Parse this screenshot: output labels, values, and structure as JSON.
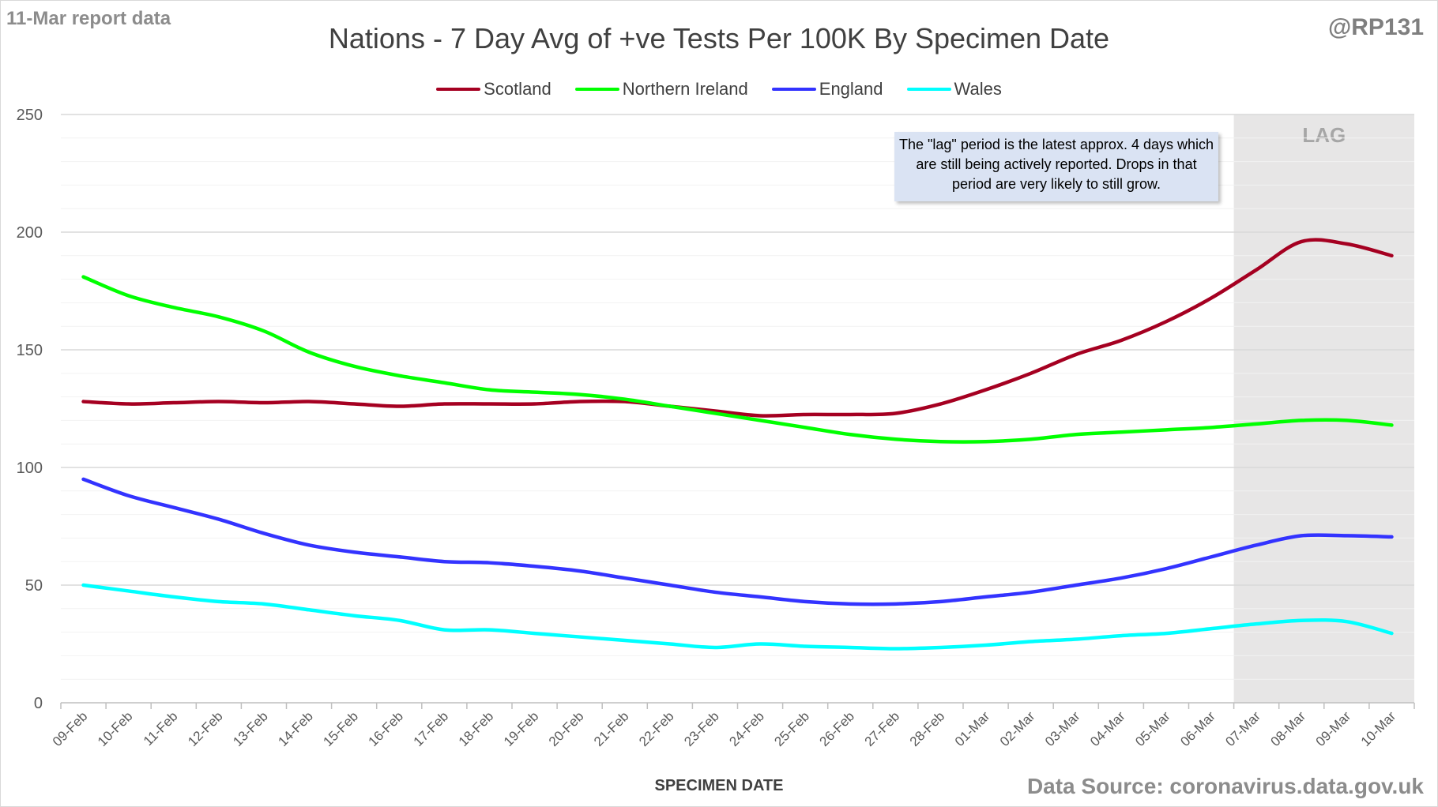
{
  "corner_left": "11-Mar report data",
  "corner_right": "@RP131",
  "source": "Data Source: coronavirus.data.gov.uk",
  "note": "The \"lag\" period is the latest approx. 4 days which are still being actively reported. Drops in that period are very likely to still grow.",
  "chart_data": {
    "type": "line",
    "title": "Nations - 7 Day Avg of +ve Tests Per 100K By Specimen Date",
    "xlabel": "SPECIMEN DATE",
    "ylabel": "",
    "ylim": [
      0,
      250
    ],
    "yticks": [
      0,
      50,
      100,
      150,
      200,
      250
    ],
    "grid": true,
    "legend_position": "top-center",
    "lag_label": "LAG",
    "lag_start_category": "07-Mar",
    "categories": [
      "09-Feb",
      "10-Feb",
      "11-Feb",
      "12-Feb",
      "13-Feb",
      "14-Feb",
      "15-Feb",
      "16-Feb",
      "17-Feb",
      "18-Feb",
      "19-Feb",
      "20-Feb",
      "21-Feb",
      "22-Feb",
      "23-Feb",
      "24-Feb",
      "25-Feb",
      "26-Feb",
      "27-Feb",
      "28-Feb",
      "01-Mar",
      "02-Mar",
      "03-Mar",
      "04-Mar",
      "05-Mar",
      "06-Mar",
      "07-Mar",
      "08-Mar",
      "09-Mar",
      "10-Mar"
    ],
    "series": [
      {
        "name": "Scotland",
        "color": "#a50021",
        "values": [
          128,
          127,
          127.5,
          128,
          127.5,
          128,
          127,
          126,
          127,
          127,
          127,
          128,
          128,
          126,
          124,
          122,
          122.5,
          122.5,
          123,
          127,
          133,
          140,
          148,
          154,
          162,
          172,
          184,
          196,
          195,
          190
        ]
      },
      {
        "name": "Northern Ireland",
        "color": "#00ff00",
        "values": [
          181,
          173,
          168,
          164,
          158,
          149,
          143,
          139,
          136,
          133,
          132,
          131,
          129,
          126,
          123,
          120,
          117,
          114,
          112,
          111,
          111,
          112,
          114,
          115,
          116,
          117,
          118.5,
          120,
          120,
          118
        ]
      },
      {
        "name": "England",
        "color": "#3333ff",
        "values": [
          95,
          88,
          83,
          78,
          72,
          67,
          64,
          62,
          60,
          59.5,
          58,
          56,
          53,
          50,
          47,
          45,
          43,
          42,
          42,
          43,
          45,
          47,
          50,
          53,
          57,
          62,
          67,
          71,
          71,
          70.5
        ]
      },
      {
        "name": "Wales",
        "color": "#00ffff",
        "values": [
          50,
          47.5,
          45,
          43,
          42,
          39.5,
          37,
          35,
          31,
          31,
          29.5,
          28,
          26.5,
          25,
          23.5,
          25,
          24,
          23.5,
          23,
          23.5,
          24.5,
          26,
          27,
          28.5,
          29.5,
          31.5,
          33.5,
          35,
          34.5,
          29.5
        ]
      }
    ]
  }
}
